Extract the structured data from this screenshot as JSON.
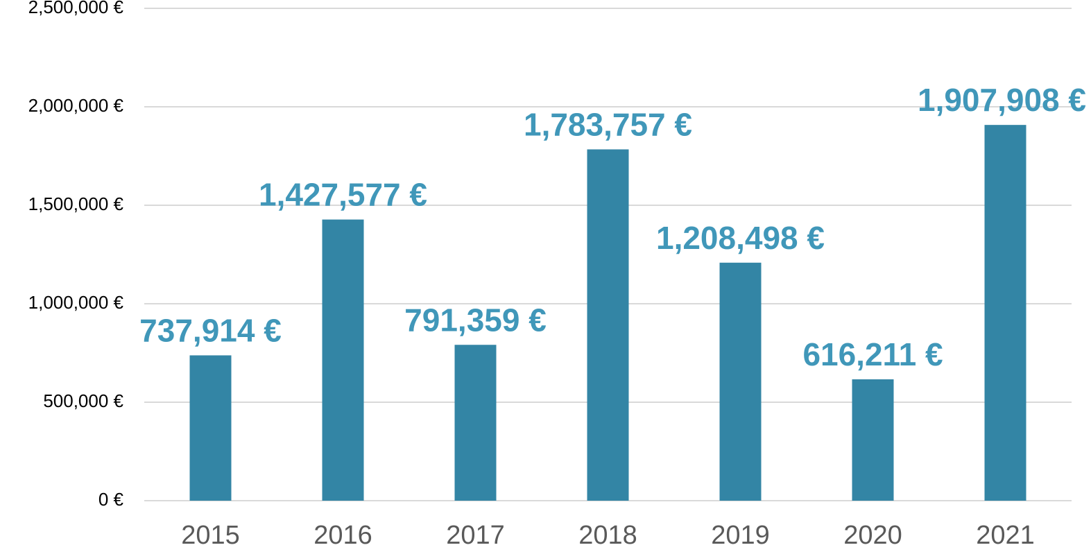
{
  "chart_data": {
    "type": "bar",
    "categories": [
      "2015",
      "2016",
      "2017",
      "2018",
      "2019",
      "2020",
      "2021"
    ],
    "values": [
      737914,
      1427577,
      791359,
      1783757,
      1208498,
      616211,
      1907908
    ],
    "value_labels": [
      "737,914 €",
      "1,427,577 €",
      "791,359 €",
      "1,783,757 €",
      "1,208,498 €",
      "616,211 €",
      "1,907,908 €"
    ],
    "color": "#3385a5",
    "ylim": [
      0,
      2500000
    ],
    "yticks": [
      {
        "value": 0,
        "label": "0 €"
      },
      {
        "value": 500000,
        "label": "500,000 €"
      },
      {
        "value": 1000000,
        "label": "1,000,000 €"
      },
      {
        "value": 1500000,
        "label": "1,500,000 €"
      },
      {
        "value": 2000000,
        "label": "2,000,000 €"
      },
      {
        "value": 2500000,
        "label": "2,500,000 €"
      }
    ],
    "grid": true
  }
}
